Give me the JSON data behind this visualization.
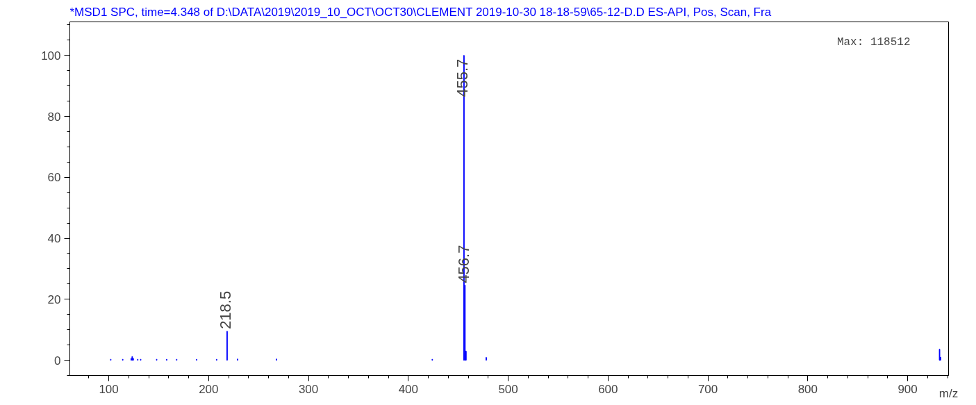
{
  "chart_data": {
    "type": "bar",
    "title": "*MSD1 SPC, time=4.348 of D:\\DATA\\2019\\2019_10_OCT\\OCT30\\CLEMENT 2019-10-30 18-18-59\\65-12-D.D    ES-API, Pos, Scan, Fra",
    "xlabel": "m/z",
    "x": [
      102.0,
      114.0,
      122.5,
      123.5,
      124.5,
      129.0,
      132.0,
      148.0,
      158.0,
      168.0,
      188.0,
      208.0,
      218.5,
      229.0,
      268.0,
      424.0,
      455.7,
      456.7,
      457.7,
      478.0,
      932.0,
      933.0
    ],
    "values": [
      0.3,
      0.3,
      0.6,
      1.2,
      0.6,
      0.3,
      0.3,
      0.3,
      0.3,
      0.3,
      0.3,
      0.3,
      9.5,
      0.4,
      0.4,
      0.3,
      100,
      24.6,
      3.0,
      0.9,
      3.6,
      1.0
    ],
    "color": "#0000ff",
    "xlim": [
      61,
      941
    ],
    "ylim": [
      -5,
      111
    ],
    "xticks": [
      100,
      200,
      300,
      400,
      500,
      600,
      700,
      800,
      900
    ],
    "yticks": [
      0,
      20,
      40,
      60,
      80,
      100
    ],
    "grid": false,
    "annotations": [
      {
        "text": "218.5",
        "x": 218.5,
        "y": 9.5
      },
      {
        "text": "455.7",
        "x": 455.7,
        "y": 100
      },
      {
        "text": "456.7",
        "x": 456.7,
        "y": 24.6
      },
      "Max: 118512"
    ]
  }
}
